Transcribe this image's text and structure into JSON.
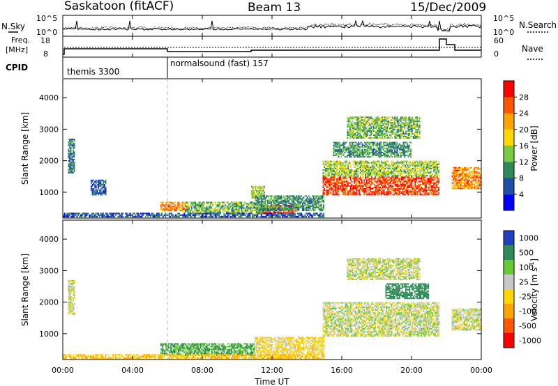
{
  "header": {
    "station": "Saskatoon (fitACF)",
    "beam": "Beam 13",
    "date": "15/Dec/2009"
  },
  "noise_panel": {
    "left_label": "N.Sky",
    "right_label": "N.Search",
    "left_ticks": [
      {
        "base": "10",
        "exp": "^5"
      },
      {
        "base": "10",
        "exp": "^0"
      }
    ],
    "right_ticks": [
      {
        "base": "10",
        "exp": "^5"
      },
      {
        "base": "10",
        "exp": "^0"
      }
    ]
  },
  "freq_panel": {
    "left_label_line1": "Freq.",
    "left_label_line2": "[MHz]",
    "right_label": "Nave",
    "left_ticks": [
      "18",
      "8"
    ],
    "right_ticks": [
      "60",
      "0"
    ]
  },
  "cpid_panel": {
    "label": "CPID",
    "modes": [
      {
        "name": "themis 3300",
        "start_hour": 0
      },
      {
        "name": "normalsound (fast) 157",
        "start_hour": 6.0
      }
    ]
  },
  "x_axis": {
    "title": "Time UT",
    "ticks": [
      "00:00",
      "04:00",
      "08:00",
      "12:00",
      "16:00",
      "20:00",
      "00:00"
    ],
    "range_hours": [
      0,
      24
    ]
  },
  "y_axis": {
    "title": "Slant Range [km]",
    "ticks": [
      "4000",
      "3000",
      "2000",
      "1000"
    ],
    "range_km": [
      180,
      4600
    ]
  },
  "chart_data": [
    {
      "type": "heatmap",
      "title": "",
      "xlabel": "Time UT",
      "ylabel": "Slant Range [km]",
      "colorbar_label": "Power [dB]",
      "colorbar_ticks": [
        "28",
        "24",
        "20",
        "16",
        "12",
        "8",
        "4"
      ],
      "colorbar_colors": [
        "#0000ff",
        "#1f50a8",
        "#2e8b57",
        "#77cc44",
        "#ffd700",
        "#ffa500",
        "#ff5500",
        "#ff0000"
      ],
      "range_dB": [
        0,
        30
      ],
      "regions": [
        {
          "t0": 0.3,
          "t1": 0.7,
          "r0": 1600,
          "r1": 2700,
          "value": 8
        },
        {
          "t0": 1.6,
          "t1": 2.5,
          "r0": 900,
          "r1": 1400,
          "value": 6
        },
        {
          "t0": 5.6,
          "t1": 7.2,
          "r0": 400,
          "r1": 700,
          "value": 22
        },
        {
          "t0": 7.0,
          "t1": 11.5,
          "r0": 300,
          "r1": 700,
          "value": 12
        },
        {
          "t0": 10.8,
          "t1": 11.6,
          "r0": 800,
          "r1": 1200,
          "value": 14
        },
        {
          "t0": 11.4,
          "t1": 13.4,
          "r0": 300,
          "r1": 600,
          "value": 28
        },
        {
          "t0": 11.0,
          "t1": 15.0,
          "r0": 400,
          "r1": 900,
          "value": 10
        },
        {
          "t0": 14.9,
          "t1": 21.6,
          "r0": 900,
          "r1": 1500,
          "value": 26
        },
        {
          "t0": 14.9,
          "t1": 21.6,
          "r0": 1500,
          "r1": 2000,
          "value": 14
        },
        {
          "t0": 16.3,
          "t1": 20.5,
          "r0": 2700,
          "r1": 3400,
          "value": 12
        },
        {
          "t0": 15.5,
          "t1": 20.0,
          "r0": 2100,
          "r1": 2600,
          "value": 10
        },
        {
          "t0": 22.3,
          "t1": 24.0,
          "r0": 1100,
          "r1": 1800,
          "value": 22
        },
        {
          "t0": 0.0,
          "t1": 15.0,
          "r0": 200,
          "r1": 350,
          "value": 6
        }
      ]
    },
    {
      "type": "heatmap",
      "title": "",
      "xlabel": "Time UT",
      "ylabel": "Slant Range [km]",
      "colorbar_label": "Velocity [m s",
      "colorbar_label_sup": "-1",
      "colorbar_label_close": "]",
      "colorbar_ticks": [
        "1000",
        "500",
        "100",
        "25",
        "-25",
        "-100",
        "-500",
        "-1000"
      ],
      "colorbar_colors": [
        "#2040c0",
        "#2e8b57",
        "#66cc33",
        "#c8c8c8",
        "#ffd700",
        "#ffa500",
        "#ff5500",
        "#ff0000"
      ],
      "range_m_per_s": [
        -1000,
        1000
      ],
      "regions": [
        {
          "t0": 0.3,
          "t1": 0.7,
          "r0": 1600,
          "r1": 2700,
          "value": 0
        },
        {
          "t0": 5.6,
          "t1": 11.0,
          "r0": 300,
          "r1": 700,
          "value": 100
        },
        {
          "t0": 11.0,
          "t1": 15.0,
          "r0": 300,
          "r1": 900,
          "value": -50
        },
        {
          "t0": 14.9,
          "t1": 21.6,
          "r0": 900,
          "r1": 2000,
          "value": 0
        },
        {
          "t0": 16.3,
          "t1": 20.5,
          "r0": 2700,
          "r1": 3400,
          "value": 0
        },
        {
          "t0": 18.5,
          "t1": 21.0,
          "r0": 2100,
          "r1": 2600,
          "value": 300
        },
        {
          "t0": 22.3,
          "t1": 24.0,
          "r0": 1100,
          "r1": 1800,
          "value": 0
        },
        {
          "t0": 0.0,
          "t1": 15.0,
          "r0": 200,
          "r1": 350,
          "value": -100
        }
      ]
    }
  ]
}
